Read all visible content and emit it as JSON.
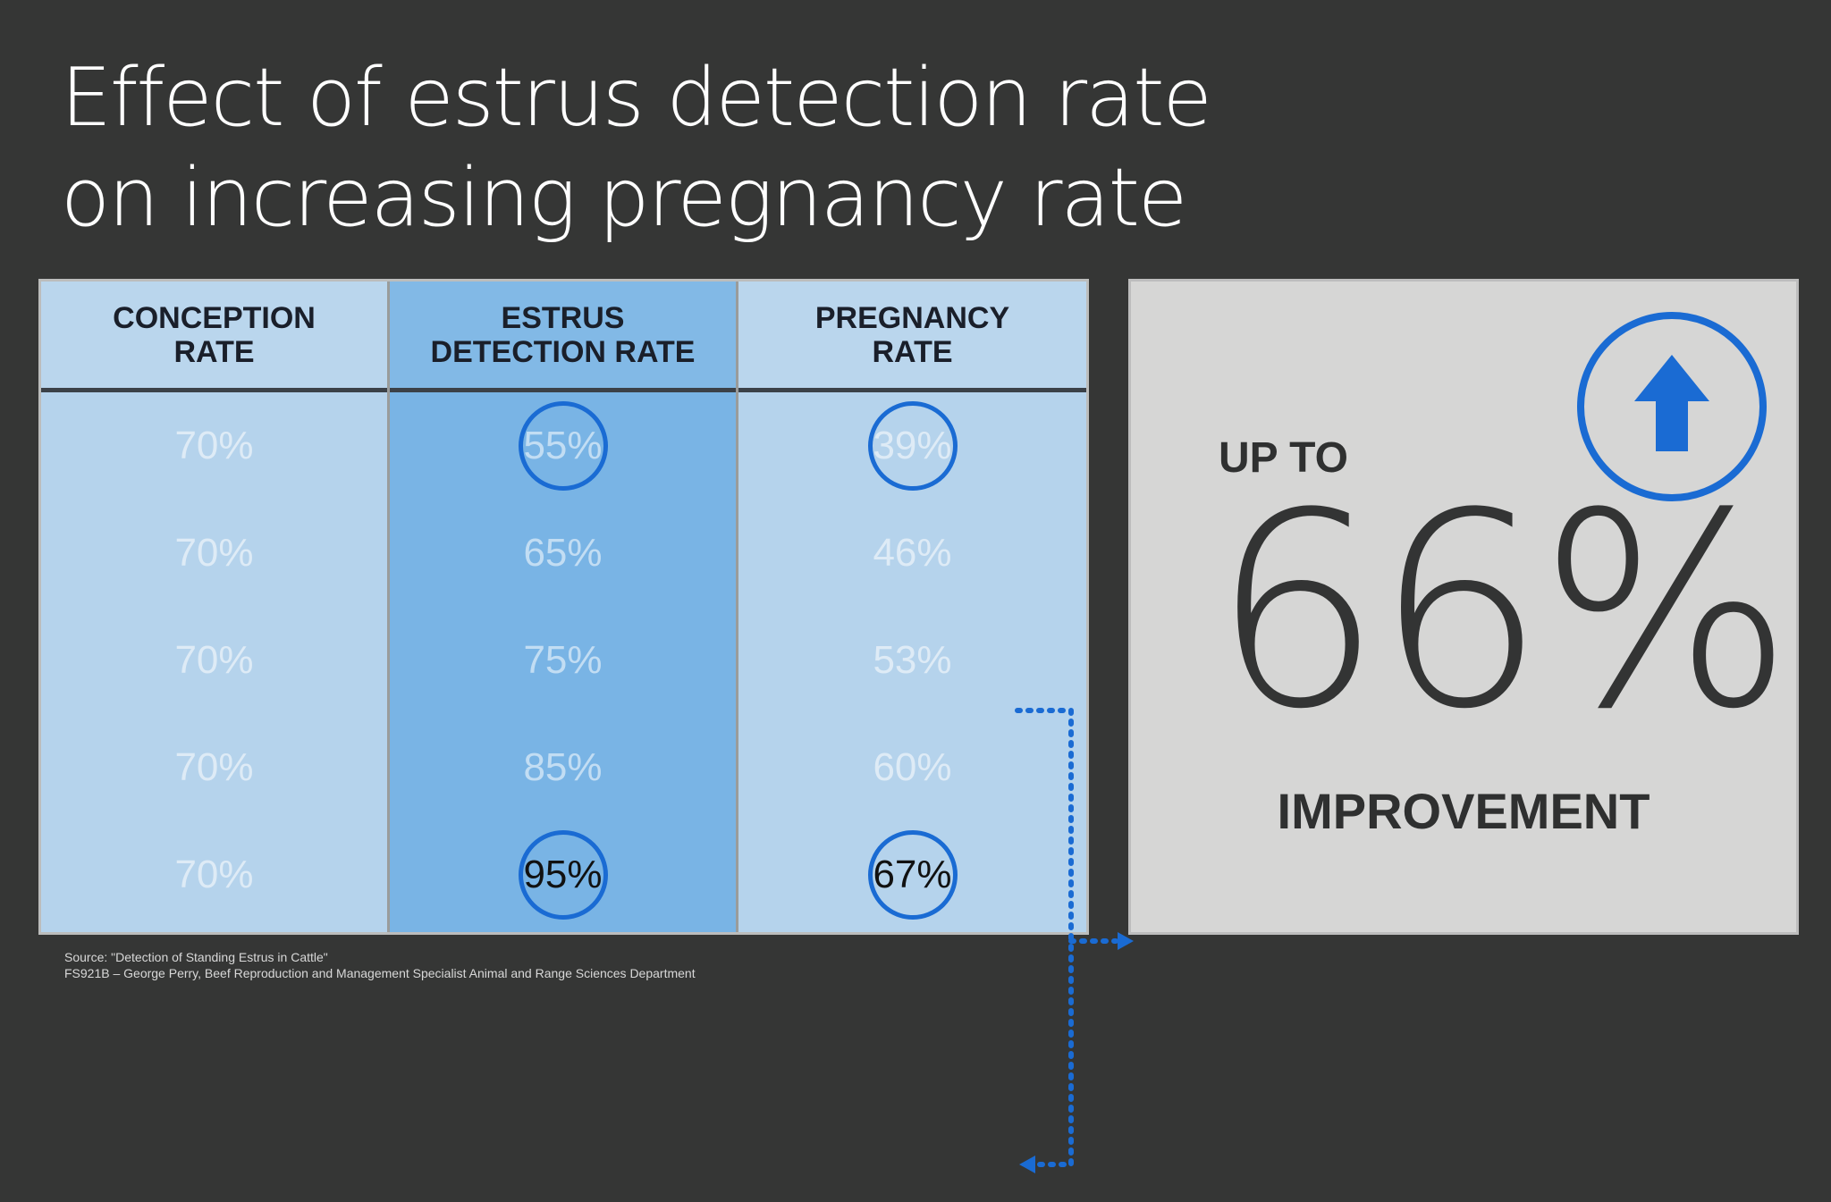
{
  "slide": {
    "title_line1": "Effect of estrus detection rate",
    "title_line2": "on increasing pregnancy rate"
  },
  "chart_data": {
    "type": "table",
    "columns": [
      "CONCEPTION RATE",
      "ESTRUS DETECTION RATE",
      "PREGNANCY RATE"
    ],
    "header_lines": [
      [
        "CONCEPTION",
        "RATE"
      ],
      [
        "ESTRUS",
        "DETECTION RATE"
      ],
      [
        "PREGNANCY",
        "RATE"
      ]
    ],
    "rows": [
      [
        "70%",
        "55%",
        "39%"
      ],
      [
        "70%",
        "65%",
        "46%"
      ],
      [
        "70%",
        "75%",
        "53%"
      ],
      [
        "70%",
        "85%",
        "60%"
      ],
      [
        "70%",
        "95%",
        "67%"
      ]
    ],
    "highlighted_cells": [
      [
        0,
        1
      ],
      [
        0,
        2
      ],
      [
        4,
        1
      ],
      [
        4,
        2
      ]
    ]
  },
  "callout": {
    "up_to": "UP TO",
    "value": "66%",
    "label": "IMPROVEMENT",
    "icon": "arrow-up-circle-icon"
  },
  "source": {
    "line1": "Source: \"Detection of Standing Estrus in Cattle\"",
    "line2": "FS921B – George Perry, Beef Reproduction and Management Specialist Animal and Range Sciences Department"
  },
  "colors": {
    "background": "#353635",
    "column_light": "#b5d3ec",
    "column_highlight": "#79b4e5",
    "accent_blue": "#1a6bd3",
    "panel": "#d6d6d5"
  }
}
